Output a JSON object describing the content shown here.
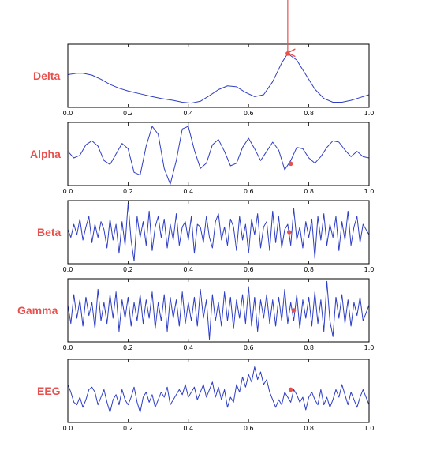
{
  "chart_data": [
    {
      "type": "line",
      "label": "Delta",
      "xlim": [
        0.0,
        1.0
      ],
      "ylim": [
        -0.35,
        1.0
      ],
      "x_ticks": [
        "0.0",
        "0.2",
        "0.4",
        "0.6",
        "0.8",
        "1.0"
      ],
      "x": [
        0.0,
        0.03,
        0.05,
        0.08,
        0.11,
        0.14,
        0.17,
        0.2,
        0.24,
        0.28,
        0.31,
        0.35,
        0.38,
        0.41,
        0.44,
        0.47,
        0.5,
        0.53,
        0.56,
        0.59,
        0.62,
        0.65,
        0.68,
        0.71,
        0.73,
        0.76,
        0.79,
        0.82,
        0.85,
        0.88,
        0.91,
        0.94,
        0.97,
        1.0
      ],
      "y": [
        0.35,
        0.38,
        0.38,
        0.34,
        0.25,
        0.14,
        0.06,
        0.0,
        -0.06,
        -0.12,
        -0.16,
        -0.2,
        -0.24,
        -0.26,
        -0.22,
        -0.1,
        0.03,
        0.11,
        0.09,
        -0.03,
        -0.12,
        -0.08,
        0.2,
        0.6,
        0.8,
        0.66,
        0.35,
        0.04,
        -0.16,
        -0.24,
        -0.24,
        -0.2,
        -0.14,
        -0.08
      ],
      "marker": {
        "x": 0.73,
        "y": 0.8
      },
      "annotation_arrow": true
    },
    {
      "type": "line",
      "label": "Alpha",
      "xlim": [
        0.0,
        1.0
      ],
      "ylim": [
        -1.25,
        1.15
      ],
      "x_ticks": [
        "0.0",
        "0.2",
        "0.4",
        "0.6",
        "0.8",
        "1.0"
      ],
      "x": [
        0.0,
        0.02,
        0.04,
        0.06,
        0.08,
        0.1,
        0.12,
        0.14,
        0.16,
        0.18,
        0.2,
        0.22,
        0.24,
        0.26,
        0.28,
        0.3,
        0.32,
        0.34,
        0.36,
        0.38,
        0.4,
        0.42,
        0.44,
        0.46,
        0.48,
        0.5,
        0.52,
        0.54,
        0.56,
        0.58,
        0.6,
        0.62,
        0.64,
        0.66,
        0.68,
        0.7,
        0.72,
        0.74,
        0.76,
        0.78,
        0.8,
        0.82,
        0.84,
        0.86,
        0.88,
        0.9,
        0.92,
        0.94,
        0.96,
        0.98,
        1.0
      ],
      "y": [
        0.05,
        -0.2,
        -0.1,
        0.3,
        0.45,
        0.25,
        -0.3,
        -0.45,
        -0.05,
        0.35,
        0.15,
        -0.75,
        -0.85,
        0.25,
        1.0,
        0.7,
        -0.6,
        -1.2,
        -0.3,
        0.9,
        1.0,
        0.1,
        -0.6,
        -0.4,
        0.3,
        0.5,
        0.05,
        -0.5,
        -0.4,
        0.2,
        0.55,
        0.15,
        -0.3,
        0.05,
        0.4,
        0.1,
        -0.65,
        -0.3,
        0.2,
        0.15,
        -0.2,
        -0.4,
        -0.15,
        0.2,
        0.45,
        0.4,
        0.1,
        -0.15,
        0.05,
        -0.15,
        -0.2
      ],
      "marker": {
        "x": 0.74,
        "y": -0.42
      }
    },
    {
      "type": "line",
      "label": "Beta",
      "xlim": [
        0.0,
        1.0
      ],
      "ylim": [
        -1.2,
        1.2
      ],
      "x_ticks": [
        "0.0",
        "0.2",
        "0.4",
        "0.6",
        "0.8",
        "1.0"
      ],
      "x": [
        0.0,
        0.01,
        0.02,
        0.03,
        0.04,
        0.05,
        0.06,
        0.07,
        0.08,
        0.09,
        0.1,
        0.11,
        0.12,
        0.13,
        0.14,
        0.15,
        0.16,
        0.17,
        0.18,
        0.19,
        0.2,
        0.21,
        0.22,
        0.23,
        0.24,
        0.25,
        0.26,
        0.27,
        0.28,
        0.29,
        0.3,
        0.31,
        0.32,
        0.33,
        0.34,
        0.35,
        0.36,
        0.37,
        0.38,
        0.39,
        0.4,
        0.41,
        0.42,
        0.43,
        0.44,
        0.45,
        0.46,
        0.47,
        0.48,
        0.49,
        0.5,
        0.51,
        0.52,
        0.53,
        0.54,
        0.55,
        0.56,
        0.57,
        0.58,
        0.59,
        0.6,
        0.61,
        0.62,
        0.63,
        0.64,
        0.65,
        0.66,
        0.67,
        0.68,
        0.69,
        0.7,
        0.71,
        0.72,
        0.73,
        0.74,
        0.75,
        0.76,
        0.77,
        0.78,
        0.79,
        0.8,
        0.81,
        0.82,
        0.83,
        0.84,
        0.85,
        0.86,
        0.87,
        0.88,
        0.89,
        0.9,
        0.91,
        0.92,
        0.93,
        0.94,
        0.95,
        0.96,
        0.97,
        0.98,
        1.0
      ],
      "y": [
        0.1,
        -0.2,
        0.3,
        -0.1,
        0.5,
        -0.3,
        0.2,
        0.6,
        -0.4,
        0.3,
        -0.2,
        0.4,
        0.1,
        -0.6,
        0.5,
        -0.3,
        0.3,
        -0.8,
        0.4,
        -0.5,
        1.1,
        -0.3,
        -1.1,
        0.6,
        -0.2,
        0.4,
        -0.5,
        0.8,
        -0.7,
        0.2,
        0.6,
        -0.2,
        0.5,
        -0.6,
        0.3,
        -0.3,
        0.7,
        -0.5,
        0.2,
        0.4,
        -0.3,
        0.6,
        -0.8,
        0.3,
        0.2,
        -0.4,
        0.6,
        -0.2,
        -0.6,
        0.4,
        0.7,
        -0.3,
        0.2,
        -0.5,
        0.5,
        0.2,
        -0.7,
        0.6,
        -0.3,
        0.3,
        -0.8,
        0.5,
        -0.1,
        0.7,
        -0.6,
        0.2,
        0.4,
        -0.7,
        0.8,
        -0.4,
        0.6,
        -0.6,
        0.1,
        0.3,
        -0.5,
        0.9,
        -0.3,
        0.2,
        -0.6,
        0.4,
        -0.2,
        0.5,
        -1.0,
        0.6,
        -0.3,
        0.7,
        -0.5,
        0.3,
        -0.2,
        0.6,
        -0.7,
        0.4,
        -0.3,
        0.8,
        -0.5,
        0.2,
        0.6,
        -0.4,
        0.3,
        -0.1
      ],
      "marker": {
        "x": 0.735,
        "y": 0.0
      }
    },
    {
      "type": "line",
      "label": "Gamma",
      "xlim": [
        0.0,
        1.0
      ],
      "ylim": [
        -1.2,
        1.2
      ],
      "x_ticks": [
        "0.0",
        "0.2",
        "0.4",
        "0.6",
        "0.8",
        "1.0"
      ],
      "x": [
        0.0,
        0.01,
        0.02,
        0.03,
        0.04,
        0.05,
        0.06,
        0.07,
        0.08,
        0.09,
        0.1,
        0.11,
        0.12,
        0.13,
        0.14,
        0.15,
        0.16,
        0.17,
        0.18,
        0.19,
        0.2,
        0.21,
        0.22,
        0.23,
        0.24,
        0.25,
        0.26,
        0.27,
        0.28,
        0.29,
        0.3,
        0.31,
        0.32,
        0.33,
        0.34,
        0.35,
        0.36,
        0.37,
        0.38,
        0.39,
        0.4,
        0.41,
        0.42,
        0.43,
        0.44,
        0.45,
        0.46,
        0.47,
        0.48,
        0.49,
        0.5,
        0.51,
        0.52,
        0.53,
        0.54,
        0.55,
        0.56,
        0.57,
        0.58,
        0.59,
        0.6,
        0.61,
        0.62,
        0.63,
        0.64,
        0.65,
        0.66,
        0.67,
        0.68,
        0.69,
        0.7,
        0.71,
        0.72,
        0.73,
        0.74,
        0.75,
        0.76,
        0.77,
        0.78,
        0.79,
        0.8,
        0.81,
        0.82,
        0.83,
        0.84,
        0.85,
        0.86,
        0.87,
        0.88,
        0.89,
        0.9,
        0.91,
        0.92,
        0.93,
        0.94,
        0.95,
        0.96,
        0.97,
        0.98,
        1.0
      ],
      "y": [
        0.2,
        -0.5,
        0.6,
        -0.3,
        0.4,
        -0.6,
        0.5,
        -0.2,
        0.3,
        -0.7,
        0.8,
        -0.4,
        0.3,
        -0.5,
        0.6,
        -0.3,
        0.7,
        -0.8,
        0.4,
        -0.3,
        0.5,
        -0.6,
        0.3,
        -0.4,
        0.6,
        -0.5,
        0.4,
        -0.3,
        0.7,
        -0.7,
        0.3,
        -0.4,
        0.6,
        -0.8,
        0.5,
        -0.3,
        0.4,
        -0.6,
        0.7,
        -0.5,
        0.3,
        -0.4,
        0.5,
        -0.6,
        0.8,
        -0.3,
        0.4,
        -1.1,
        0.6,
        -0.4,
        0.3,
        -0.6,
        0.7,
        -0.4,
        0.5,
        -0.7,
        0.4,
        -0.3,
        0.6,
        -0.5,
        0.9,
        -0.6,
        0.5,
        -0.8,
        0.4,
        -0.3,
        0.6,
        -0.5,
        0.4,
        -0.6,
        0.5,
        -0.4,
        0.8,
        -0.5,
        0.3,
        -0.4,
        0.6,
        -0.7,
        0.4,
        -0.3,
        0.5,
        -0.6,
        0.7,
        -0.5,
        0.4,
        -0.8,
        1.1,
        -0.4,
        -1.0,
        0.5,
        -0.3,
        0.6,
        -0.5,
        0.4,
        -0.6,
        0.3,
        -0.2,
        0.5,
        -0.4,
        0.2
      ],
      "marker": {
        "x": 0.75,
        "y": 0.0
      }
    },
    {
      "type": "line",
      "label": "EEG",
      "xlim": [
        0.0,
        1.0
      ],
      "ylim": [
        -1.2,
        1.3
      ],
      "x_ticks": [
        "0.0",
        "0.2",
        "0.4",
        "0.6",
        "0.8",
        "1.0"
      ],
      "x": [
        0.0,
        0.01,
        0.02,
        0.03,
        0.04,
        0.05,
        0.06,
        0.07,
        0.08,
        0.09,
        0.1,
        0.11,
        0.12,
        0.13,
        0.14,
        0.15,
        0.16,
        0.17,
        0.18,
        0.19,
        0.2,
        0.21,
        0.22,
        0.23,
        0.24,
        0.25,
        0.26,
        0.27,
        0.28,
        0.29,
        0.3,
        0.31,
        0.32,
        0.33,
        0.34,
        0.35,
        0.36,
        0.37,
        0.38,
        0.39,
        0.4,
        0.41,
        0.42,
        0.43,
        0.44,
        0.45,
        0.46,
        0.47,
        0.48,
        0.49,
        0.5,
        0.51,
        0.52,
        0.53,
        0.54,
        0.55,
        0.56,
        0.57,
        0.58,
        0.59,
        0.6,
        0.61,
        0.62,
        0.63,
        0.64,
        0.65,
        0.66,
        0.67,
        0.68,
        0.69,
        0.7,
        0.71,
        0.72,
        0.73,
        0.74,
        0.75,
        0.76,
        0.77,
        0.78,
        0.79,
        0.8,
        0.81,
        0.82,
        0.83,
        0.84,
        0.85,
        0.86,
        0.87,
        0.88,
        0.89,
        0.9,
        0.91,
        0.92,
        0.93,
        0.94,
        0.95,
        0.96,
        0.97,
        0.98,
        1.0
      ],
      "y": [
        0.3,
        0.0,
        -0.4,
        -0.5,
        -0.2,
        -0.6,
        -0.3,
        0.1,
        0.2,
        0.0,
        -0.5,
        -0.2,
        0.1,
        -0.4,
        -0.8,
        -0.3,
        -0.1,
        -0.5,
        0.1,
        -0.3,
        -0.5,
        -0.2,
        0.2,
        -0.4,
        -0.8,
        -0.2,
        0.0,
        -0.4,
        -0.1,
        -0.6,
        -0.3,
        0.0,
        -0.2,
        0.2,
        -0.5,
        -0.3,
        -0.1,
        0.1,
        -0.1,
        0.3,
        -0.2,
        0.0,
        0.2,
        -0.3,
        0.0,
        0.3,
        -0.2,
        0.1,
        0.4,
        -0.2,
        0.2,
        -0.3,
        0.1,
        -0.6,
        -0.2,
        -0.4,
        0.3,
        0.0,
        0.6,
        0.2,
        0.7,
        0.4,
        1.0,
        0.5,
        0.8,
        0.3,
        0.5,
        0.0,
        -0.3,
        -0.6,
        -0.3,
        -0.5,
        0.0,
        -0.2,
        -0.4,
        0.1,
        -0.1,
        -0.4,
        -0.2,
        -0.7,
        -0.2,
        0.0,
        -0.3,
        -0.5,
        0.1,
        -0.5,
        -0.2,
        -0.6,
        -0.3,
        0.1,
        -0.2,
        0.3,
        -0.1,
        -0.5,
        0.0,
        -0.3,
        -0.6,
        -0.2,
        0.1,
        -0.5
      ],
      "marker": {
        "x": 0.74,
        "y": 0.1
      }
    }
  ]
}
